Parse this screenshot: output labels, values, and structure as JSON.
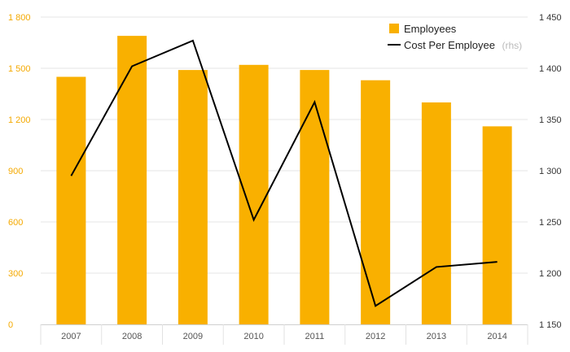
{
  "chart_data": {
    "type": "bar",
    "categories": [
      "2007",
      "2008",
      "2009",
      "2010",
      "2011",
      "2012",
      "2013",
      "2014"
    ],
    "series": [
      {
        "name": "Employees",
        "type": "bar",
        "axis": "left",
        "color": "#f9b000",
        "values": [
          1450,
          1690,
          1490,
          1520,
          1490,
          1430,
          1300,
          1160
        ]
      },
      {
        "name": "Cost Per Employee",
        "suffix": "(rhs)",
        "type": "line",
        "axis": "right",
        "color": "#000000",
        "values": [
          1295,
          1402,
          1427,
          1252,
          1367,
          1168,
          1206,
          1211
        ]
      }
    ],
    "y_left": {
      "min": 0,
      "max": 1800,
      "ticks": [
        0,
        300,
        600,
        900,
        1200,
        1500,
        1800
      ],
      "tick_labels": [
        "0",
        "300",
        "600",
        "900",
        "1 200",
        "1 500",
        "1 800"
      ],
      "color": "#f4a900"
    },
    "y_right": {
      "min": 1150,
      "max": 1450,
      "ticks": [
        1150,
        1200,
        1250,
        1300,
        1350,
        1400,
        1450
      ],
      "tick_labels": [
        "1 150",
        "1 200",
        "1 250",
        "1 300",
        "1 350",
        "1 400",
        "1 450"
      ],
      "color": "#333333"
    },
    "grid": true,
    "legend_position": "top-right"
  }
}
